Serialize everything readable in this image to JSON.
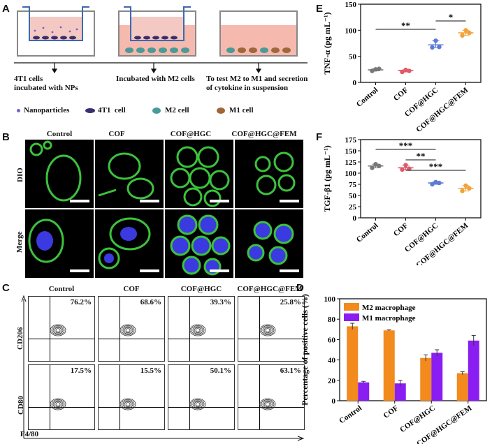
{
  "panels": {
    "A": "A",
    "B": "B",
    "C": "C",
    "D": "D",
    "E": "E",
    "F": "F"
  },
  "panelA": {
    "captions": [
      "4T1 cells\nincubated with NPs",
      "Incubated with M2 cells",
      "To test M2 to M1 and secretion\nof cytokine in suspension"
    ],
    "legend": [
      {
        "label": "Nanoparticles",
        "color": "#7a5fc9"
      },
      {
        "label": "4T1  cell",
        "color": "#3b2d6e"
      },
      {
        "label": "M2 cell",
        "color": "#4a9a9a"
      },
      {
        "label": "M1 cell",
        "color": "#a0673a"
      }
    ]
  },
  "groups": [
    "Control",
    "COF",
    "COF@HGC",
    "COF@HGC@FEM"
  ],
  "panelB": {
    "rows": [
      "DIO",
      "Merge"
    ]
  },
  "panelC": {
    "rows": [
      "CD206",
      "CD80"
    ],
    "xaxis": "F4/80",
    "cd206": [
      "76.2%",
      "68.6%",
      "39.3%",
      "25.8%"
    ],
    "cd80": [
      "17.5%",
      "15.5%",
      "50.1%",
      "63.1%"
    ]
  },
  "chart_data": [
    {
      "id": "E",
      "type": "scatter",
      "ylabel": "TNF-α (pg mL⁻¹)",
      "categories": [
        "Control",
        "COF",
        "COF@HGC",
        "COF@HGC@FEM"
      ],
      "ylim": [
        0,
        150
      ],
      "yticks": [
        "0",
        "50",
        "100",
        "150"
      ],
      "means": [
        24,
        23,
        72,
        95
      ],
      "points": [
        [
          25,
          22,
          26
        ],
        [
          24,
          20,
          22
        ],
        [
          80,
          67,
          68
        ],
        [
          100,
          90,
          95
        ]
      ],
      "colors": [
        "#777777",
        "#e05a6a",
        "#5b7bd6",
        "#f0a33a"
      ],
      "significance": [
        {
          "from": 0,
          "to": 2,
          "label": "**"
        },
        {
          "from": 2,
          "to": 3,
          "label": "*"
        }
      ]
    },
    {
      "id": "F",
      "type": "scatter",
      "ylabel": "TGF-β1 (pg mL⁻¹)",
      "categories": [
        "Control",
        "COF",
        "COF@HGC",
        "COF@HGC@FEM"
      ],
      "ylim": [
        0,
        175
      ],
      "yticks": [
        "0",
        "25",
        "50",
        "75",
        "100",
        "125",
        "150",
        "175"
      ],
      "means": [
        116,
        112,
        78,
        66
      ],
      "points": [
        [
          120,
          112,
          116
        ],
        [
          118,
          108,
          110
        ],
        [
          80,
          75,
          78
        ],
        [
          72,
          60,
          66
        ]
      ],
      "colors": [
        "#777777",
        "#e05a6a",
        "#5b7bd6",
        "#f0a33a"
      ],
      "significance": [
        {
          "from": 0,
          "to": 2,
          "label": "***"
        },
        {
          "from": 1,
          "to": 2,
          "label": "**"
        },
        {
          "from": 1,
          "to": 3,
          "label": "***"
        }
      ]
    },
    {
      "id": "D",
      "type": "bar",
      "ylabel": "Percentage of positive cells (%)",
      "categories": [
        "Control",
        "COF",
        "COF@HGC",
        "COF@HGC@FEM"
      ],
      "ylim": [
        0,
        100
      ],
      "yticks": [
        "0",
        "20",
        "40",
        "60",
        "80",
        "100"
      ],
      "series": [
        {
          "name": "M2 macrophage",
          "values": [
            73,
            69,
            42,
            27
          ],
          "errors": [
            3,
            0.5,
            3,
            1.5
          ],
          "color": "#f28a1e"
        },
        {
          "name": "M1 macrophage",
          "values": [
            18,
            17,
            47,
            59
          ],
          "errors": [
            1,
            3,
            3,
            5
          ],
          "color": "#8a1ef2"
        }
      ]
    }
  ]
}
